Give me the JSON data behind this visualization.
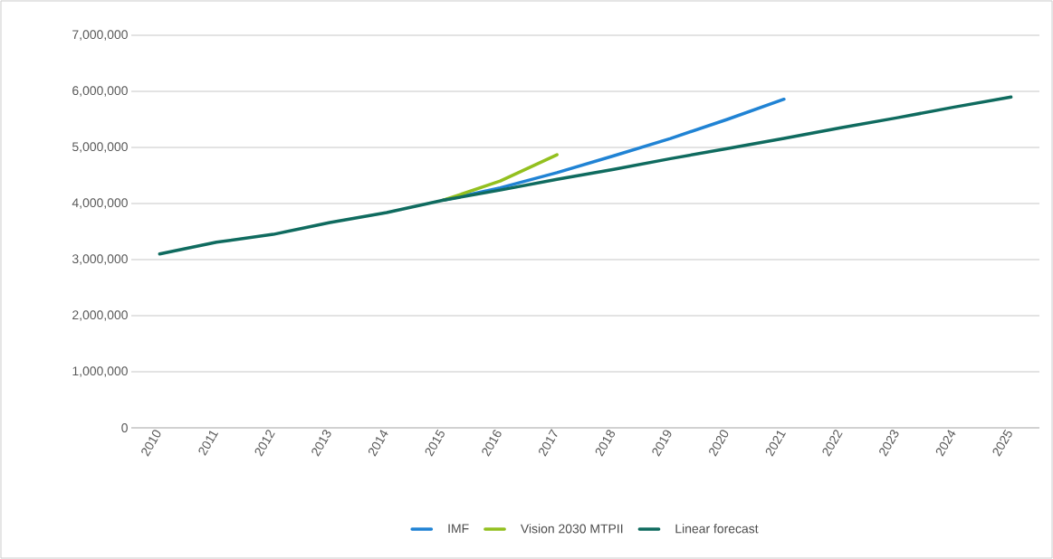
{
  "chart_data": {
    "type": "line",
    "categories": [
      "2010",
      "2011",
      "2012",
      "2013",
      "2014",
      "2015",
      "2016",
      "2017",
      "2018",
      "2019",
      "2020",
      "2021",
      "2022",
      "2023",
      "2024",
      "2025"
    ],
    "series": [
      {
        "name": "IMF",
        "color": "#2083d4",
        "values": [
          null,
          null,
          null,
          null,
          null,
          4060000,
          4280000,
          4550000,
          4850000,
          5160000,
          5500000,
          5860000,
          null,
          null,
          null,
          null
        ]
      },
      {
        "name": "Vision 2030 MTPII",
        "color": "#93c01f",
        "values": [
          null,
          null,
          null,
          null,
          null,
          4060000,
          4400000,
          4870000,
          null,
          null,
          null,
          null,
          null,
          null,
          null,
          null
        ]
      },
      {
        "name": "Linear forecast",
        "color": "#0f6b5f",
        "values": [
          3100000,
          3310000,
          3450000,
          3660000,
          3840000,
          4060000,
          4240000,
          4430000,
          4610000,
          4800000,
          4980000,
          5160000,
          5350000,
          5530000,
          5720000,
          5900000
        ]
      }
    ],
    "ylim": [
      0,
      7000000
    ],
    "yticks": [
      0,
      {
        "value": 1000000,
        "label": "1,000,000"
      },
      {
        "value": 2000000,
        "label": "2,000,000"
      },
      {
        "value": 3000000,
        "label": "3,000,000"
      },
      {
        "value": 4000000,
        "label": "4,000,000"
      },
      {
        "value": 5000000,
        "label": "5,000,000"
      },
      {
        "value": 6000000,
        "label": "6,000,000"
      },
      {
        "value": 7000000,
        "label": "7,000,000"
      }
    ],
    "grid": "y",
    "legend": "bottom"
  }
}
